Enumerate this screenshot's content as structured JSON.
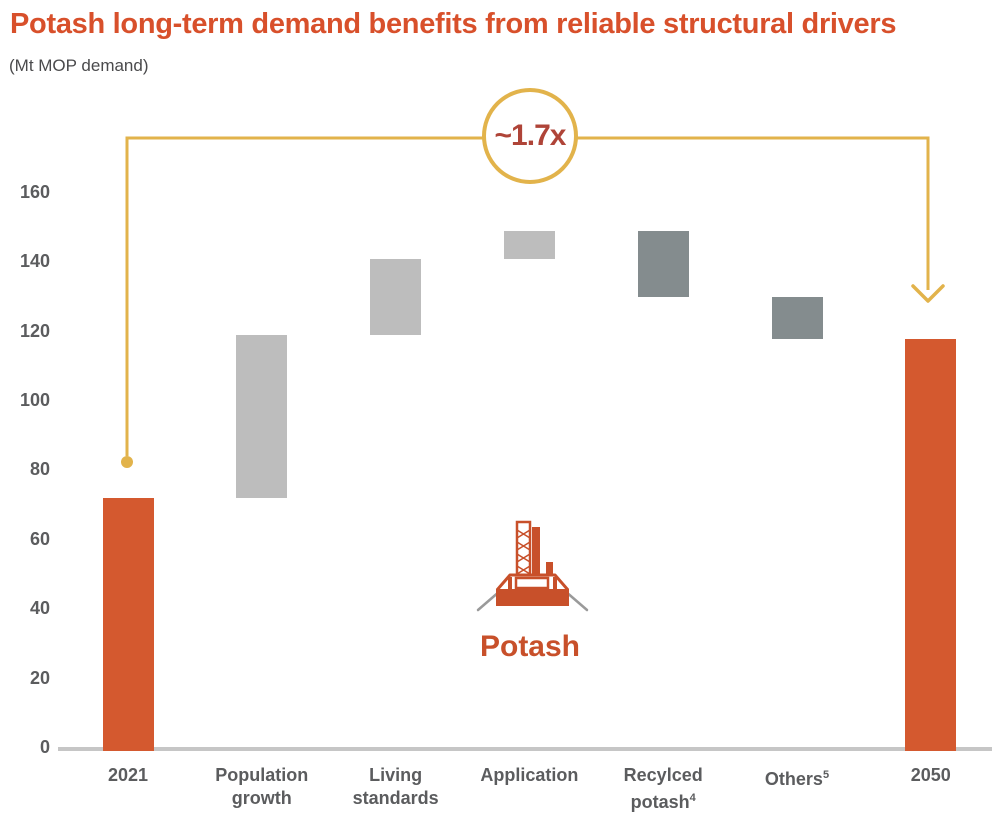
{
  "header": {
    "title": "Potash long-term demand benefits from reliable structural drivers",
    "subtitle": "(Mt MOP demand)"
  },
  "annotation": {
    "ratio_label": "~1.7x",
    "icon_label": "Potash"
  },
  "colors": {
    "title_orange": "#D8502B",
    "bar_orange": "#D4592F",
    "bar_light_gray": "#BDBDBD",
    "bar_dark_gray": "#848C8E",
    "annotation_yellow": "#E2B34B",
    "ratio_red": "#AF4438",
    "axis_line_gray": "#C6C6C6",
    "label_gray": "#5B5C5E"
  },
  "chart_data": {
    "type": "waterfall",
    "title": "Potash long-term demand benefits from reliable structural drivers",
    "ylabel": "Mt MOP demand",
    "ylim": [
      0,
      160
    ],
    "yticks": [
      0,
      20,
      40,
      60,
      80,
      100,
      120,
      140,
      160
    ],
    "grid": false,
    "legend": "none",
    "categories": [
      "2021",
      "Population growth",
      "Living standards",
      "Application",
      "Recylced potash⁴",
      "Others⁵",
      "2050"
    ],
    "bars": [
      {
        "category": "2021",
        "label_lines": [
          "2021"
        ],
        "label_sup": "",
        "start": 0,
        "end": 72,
        "delta": 72,
        "role": "total"
      },
      {
        "category": "Population growth",
        "label_lines": [
          "Population",
          "growth"
        ],
        "label_sup": "",
        "start": 72,
        "end": 119,
        "delta": 47,
        "role": "increase"
      },
      {
        "category": "Living standards",
        "label_lines": [
          "Living",
          "standards"
        ],
        "label_sup": "",
        "start": 119,
        "end": 141,
        "delta": 22,
        "role": "increase"
      },
      {
        "category": "Application",
        "label_lines": [
          "Application"
        ],
        "label_sup": "",
        "start": 141,
        "end": 149,
        "delta": 8,
        "role": "increase"
      },
      {
        "category": "Recylced potash",
        "label_lines": [
          "Recylced",
          "potash"
        ],
        "label_sup": "4",
        "start": 149,
        "end": 130,
        "delta": -19,
        "role": "decrease"
      },
      {
        "category": "Others",
        "label_lines": [
          "Others"
        ],
        "label_sup": "5",
        "start": 130,
        "end": 118,
        "delta": -12,
        "role": "decrease"
      },
      {
        "category": "2050",
        "label_lines": [
          "2050"
        ],
        "label_sup": "",
        "start": 0,
        "end": 118,
        "delta": 118,
        "role": "total"
      }
    ],
    "annotation": {
      "text": "~1.7x",
      "from_category": "2021",
      "to_category": "2050"
    }
  }
}
